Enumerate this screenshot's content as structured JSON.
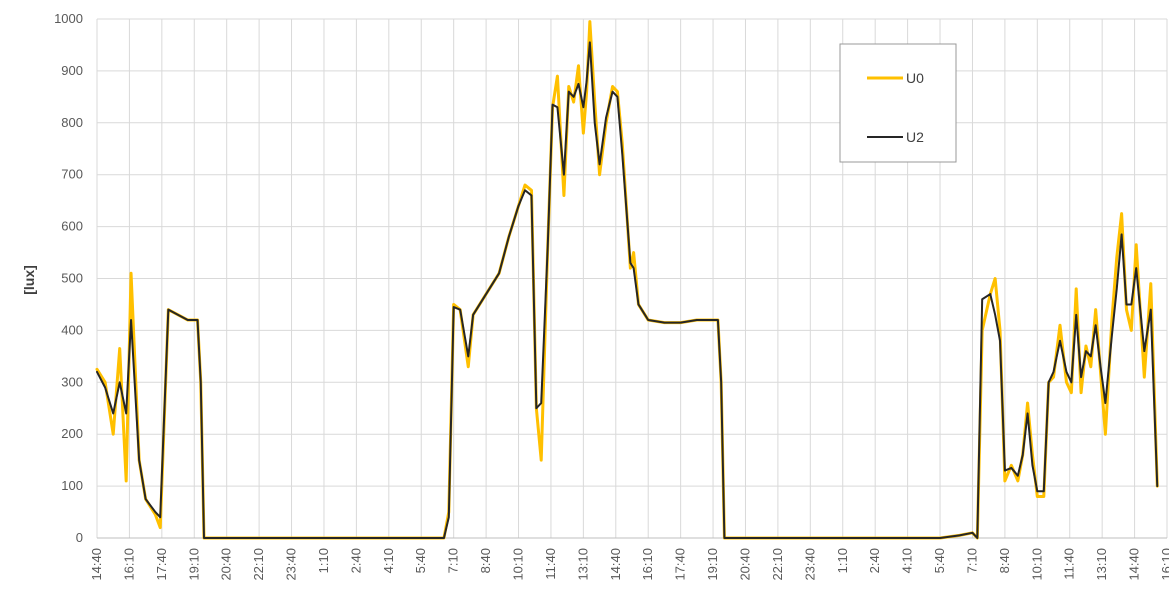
{
  "chart_data": {
    "type": "line",
    "title": "",
    "xlabel": "",
    "ylabel": "[lux]",
    "ylim": [
      0,
      1000
    ],
    "yticks": [
      0,
      100,
      200,
      300,
      400,
      500,
      600,
      700,
      800,
      900,
      1000
    ],
    "grid": true,
    "legend_position": "top-right",
    "x_tick_labels": [
      "14:40",
      "16:10",
      "17:40",
      "19:10",
      "20:40",
      "22:10",
      "23:40",
      "1:10",
      "2:40",
      "4:10",
      "5:40",
      "7:10",
      "8:40",
      "10:10",
      "11:40",
      "13:10",
      "14:40",
      "16:10",
      "17:40",
      "19:10",
      "20:40",
      "22:10",
      "23:40",
      "1:10",
      "2:40",
      "4:10",
      "5:40",
      "7:10",
      "8:40",
      "10:10",
      "11:40",
      "13:10",
      "14:40",
      "16:10"
    ],
    "series": [
      {
        "name": "U0",
        "color": "#FFC000",
        "points": [
          [
            0,
            325
          ],
          [
            0.25,
            300
          ],
          [
            0.5,
            200
          ],
          [
            0.7,
            365
          ],
          [
            0.9,
            110
          ],
          [
            1.05,
            510
          ],
          [
            1.3,
            150
          ],
          [
            1.5,
            75
          ],
          [
            1.8,
            45
          ],
          [
            1.95,
            20
          ],
          [
            2.2,
            440
          ],
          [
            2.5,
            430
          ],
          [
            2.8,
            420
          ],
          [
            3.1,
            420
          ],
          [
            3.2,
            300
          ],
          [
            3.3,
            0
          ],
          [
            4,
            0
          ],
          [
            5,
            0
          ],
          [
            6,
            0
          ],
          [
            7,
            0
          ],
          [
            8,
            0
          ],
          [
            9,
            0
          ],
          [
            10,
            0
          ],
          [
            10.7,
            0
          ],
          [
            10.85,
            50
          ],
          [
            11.0,
            450
          ],
          [
            11.2,
            440
          ],
          [
            11.45,
            330
          ],
          [
            11.6,
            430
          ],
          [
            12,
            470
          ],
          [
            12.4,
            510
          ],
          [
            12.7,
            580
          ],
          [
            13.0,
            640
          ],
          [
            13.2,
            680
          ],
          [
            13.4,
            670
          ],
          [
            13.55,
            250
          ],
          [
            13.7,
            150
          ],
          [
            13.9,
            560
          ],
          [
            14.05,
            830
          ],
          [
            14.2,
            890
          ],
          [
            14.4,
            660
          ],
          [
            14.55,
            870
          ],
          [
            14.7,
            840
          ],
          [
            14.85,
            910
          ],
          [
            15.0,
            780
          ],
          [
            15.1,
            860
          ],
          [
            15.2,
            995
          ],
          [
            15.35,
            840
          ],
          [
            15.5,
            700
          ],
          [
            15.7,
            800
          ],
          [
            15.9,
            870
          ],
          [
            16.05,
            860
          ],
          [
            16.2,
            760
          ],
          [
            16.45,
            520
          ],
          [
            16.55,
            550
          ],
          [
            16.7,
            450
          ],
          [
            17,
            420
          ],
          [
            17.5,
            415
          ],
          [
            18,
            415
          ],
          [
            18.5,
            420
          ],
          [
            19.0,
            420
          ],
          [
            19.15,
            420
          ],
          [
            19.25,
            300
          ],
          [
            19.35,
            0
          ],
          [
            20,
            0
          ],
          [
            21,
            0
          ],
          [
            22,
            0
          ],
          [
            23,
            0
          ],
          [
            24,
            0
          ],
          [
            25,
            0
          ],
          [
            26,
            0
          ],
          [
            26.6,
            5
          ],
          [
            27.0,
            10
          ],
          [
            27.15,
            0
          ],
          [
            27.3,
            400
          ],
          [
            27.55,
            470
          ],
          [
            27.7,
            500
          ],
          [
            27.85,
            400
          ],
          [
            28.0,
            110
          ],
          [
            28.2,
            140
          ],
          [
            28.4,
            110
          ],
          [
            28.55,
            160
          ],
          [
            28.7,
            260
          ],
          [
            28.85,
            160
          ],
          [
            29.0,
            80
          ],
          [
            29.2,
            80
          ],
          [
            29.35,
            300
          ],
          [
            29.5,
            310
          ],
          [
            29.7,
            410
          ],
          [
            29.9,
            300
          ],
          [
            30.05,
            280
          ],
          [
            30.2,
            480
          ],
          [
            30.35,
            280
          ],
          [
            30.5,
            370
          ],
          [
            30.65,
            330
          ],
          [
            30.8,
            440
          ],
          [
            30.95,
            320
          ],
          [
            31.1,
            200
          ],
          [
            31.3,
            420
          ],
          [
            31.45,
            540
          ],
          [
            31.6,
            625
          ],
          [
            31.75,
            440
          ],
          [
            31.9,
            400
          ],
          [
            32.05,
            565
          ],
          [
            32.3,
            310
          ],
          [
            32.5,
            490
          ],
          [
            32.7,
            100
          ]
        ]
      },
      {
        "name": "U2",
        "color": "#262626",
        "points": [
          [
            0,
            320
          ],
          [
            0.25,
            290
          ],
          [
            0.5,
            240
          ],
          [
            0.7,
            300
          ],
          [
            0.9,
            240
          ],
          [
            1.05,
            420
          ],
          [
            1.3,
            150
          ],
          [
            1.5,
            75
          ],
          [
            1.8,
            50
          ],
          [
            1.95,
            40
          ],
          [
            2.2,
            440
          ],
          [
            2.5,
            430
          ],
          [
            2.8,
            420
          ],
          [
            3.1,
            420
          ],
          [
            3.2,
            300
          ],
          [
            3.3,
            0
          ],
          [
            4,
            0
          ],
          [
            5,
            0
          ],
          [
            6,
            0
          ],
          [
            7,
            0
          ],
          [
            8,
            0
          ],
          [
            9,
            0
          ],
          [
            10,
            0
          ],
          [
            10.7,
            0
          ],
          [
            10.85,
            40
          ],
          [
            11.0,
            445
          ],
          [
            11.2,
            440
          ],
          [
            11.45,
            350
          ],
          [
            11.6,
            430
          ],
          [
            12,
            470
          ],
          [
            12.4,
            510
          ],
          [
            12.7,
            580
          ],
          [
            13.0,
            640
          ],
          [
            13.2,
            670
          ],
          [
            13.4,
            660
          ],
          [
            13.55,
            250
          ],
          [
            13.7,
            260
          ],
          [
            13.9,
            560
          ],
          [
            14.05,
            835
          ],
          [
            14.2,
            830
          ],
          [
            14.4,
            700
          ],
          [
            14.55,
            860
          ],
          [
            14.7,
            850
          ],
          [
            14.85,
            875
          ],
          [
            15.0,
            830
          ],
          [
            15.1,
            880
          ],
          [
            15.2,
            955
          ],
          [
            15.35,
            800
          ],
          [
            15.5,
            720
          ],
          [
            15.7,
            810
          ],
          [
            15.9,
            860
          ],
          [
            16.05,
            850
          ],
          [
            16.2,
            740
          ],
          [
            16.45,
            530
          ],
          [
            16.55,
            520
          ],
          [
            16.7,
            450
          ],
          [
            17,
            420
          ],
          [
            17.5,
            415
          ],
          [
            18,
            415
          ],
          [
            18.5,
            420
          ],
          [
            19.0,
            420
          ],
          [
            19.15,
            420
          ],
          [
            19.25,
            300
          ],
          [
            19.35,
            0
          ],
          [
            20,
            0
          ],
          [
            21,
            0
          ],
          [
            22,
            0
          ],
          [
            23,
            0
          ],
          [
            24,
            0
          ],
          [
            25,
            0
          ],
          [
            26,
            0
          ],
          [
            26.6,
            5
          ],
          [
            27.0,
            10
          ],
          [
            27.15,
            0
          ],
          [
            27.3,
            460
          ],
          [
            27.55,
            470
          ],
          [
            27.7,
            430
          ],
          [
            27.85,
            380
          ],
          [
            28.0,
            130
          ],
          [
            28.2,
            135
          ],
          [
            28.4,
            120
          ],
          [
            28.55,
            160
          ],
          [
            28.7,
            240
          ],
          [
            28.85,
            140
          ],
          [
            29.0,
            90
          ],
          [
            29.2,
            90
          ],
          [
            29.35,
            300
          ],
          [
            29.5,
            320
          ],
          [
            29.7,
            380
          ],
          [
            29.9,
            320
          ],
          [
            30.05,
            300
          ],
          [
            30.2,
            430
          ],
          [
            30.35,
            310
          ],
          [
            30.5,
            360
          ],
          [
            30.65,
            350
          ],
          [
            30.8,
            410
          ],
          [
            30.95,
            330
          ],
          [
            31.1,
            260
          ],
          [
            31.3,
            390
          ],
          [
            31.45,
            480
          ],
          [
            31.6,
            585
          ],
          [
            31.75,
            450
          ],
          [
            31.9,
            450
          ],
          [
            32.05,
            520
          ],
          [
            32.3,
            360
          ],
          [
            32.5,
            440
          ],
          [
            32.7,
            100
          ]
        ]
      }
    ]
  }
}
